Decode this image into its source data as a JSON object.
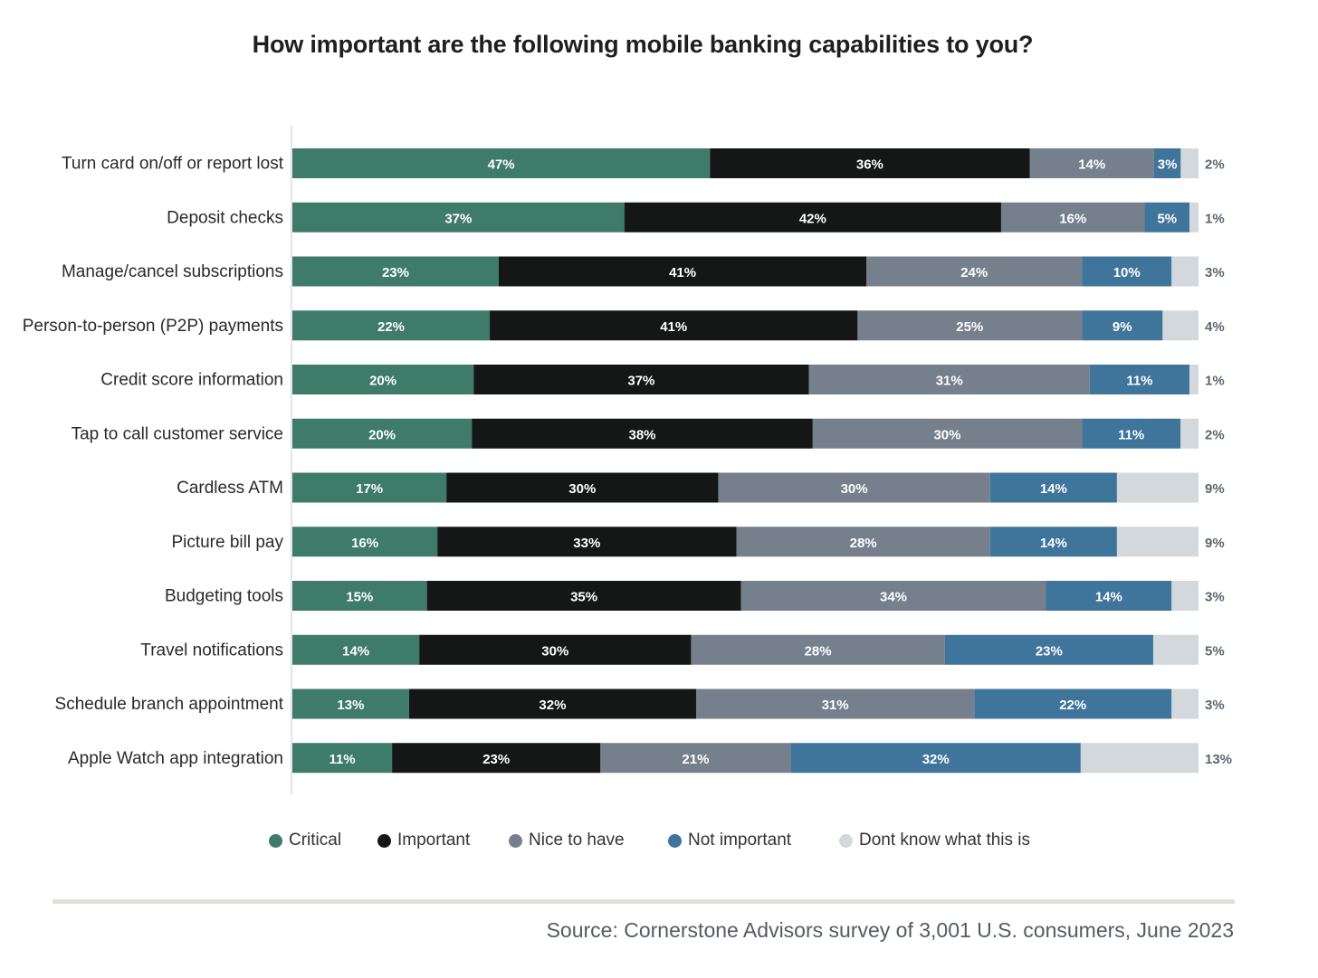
{
  "chart_data": {
    "type": "bar",
    "orientation": "horizontal",
    "stacked": true,
    "title": "How important are the following mobile banking capabilities to you?",
    "categories": [
      "Turn card on/off or report lost",
      "Deposit checks",
      "Manage/cancel subscriptions",
      "Person-to-person (P2P) payments",
      "Credit score information",
      "Tap to call customer service",
      "Cardless ATM",
      "Picture bill pay",
      "Budgeting tools",
      "Travel notifications",
      "Schedule branch appointment",
      "Apple Watch app integration"
    ],
    "series": [
      {
        "name": "Critical",
        "color": "#3e7b69",
        "values": [
          47,
          37,
          23,
          22,
          20,
          20,
          17,
          16,
          15,
          14,
          13,
          11
        ]
      },
      {
        "name": "Important",
        "color": "#151717",
        "values": [
          36,
          42,
          41,
          41,
          37,
          38,
          30,
          33,
          35,
          30,
          32,
          23
        ]
      },
      {
        "name": "Nice to have",
        "color": "#75808c",
        "values": [
          14,
          16,
          24,
          25,
          31,
          30,
          30,
          28,
          34,
          28,
          31,
          21
        ]
      },
      {
        "name": "Not important",
        "color": "#3f749b",
        "values": [
          3,
          5,
          10,
          9,
          11,
          11,
          14,
          14,
          14,
          23,
          22,
          32
        ]
      },
      {
        "name": "Dont know what this is",
        "color": "#d2d8dc",
        "values": [
          2,
          1,
          3,
          4,
          1,
          2,
          9,
          9,
          3,
          5,
          3,
          13
        ]
      }
    ],
    "value_suffix": "%",
    "xlim": [
      0,
      100
    ]
  },
  "source": "Source: Cornerstone Advisors survey of 3,001 U.S. consumers, June 2023"
}
